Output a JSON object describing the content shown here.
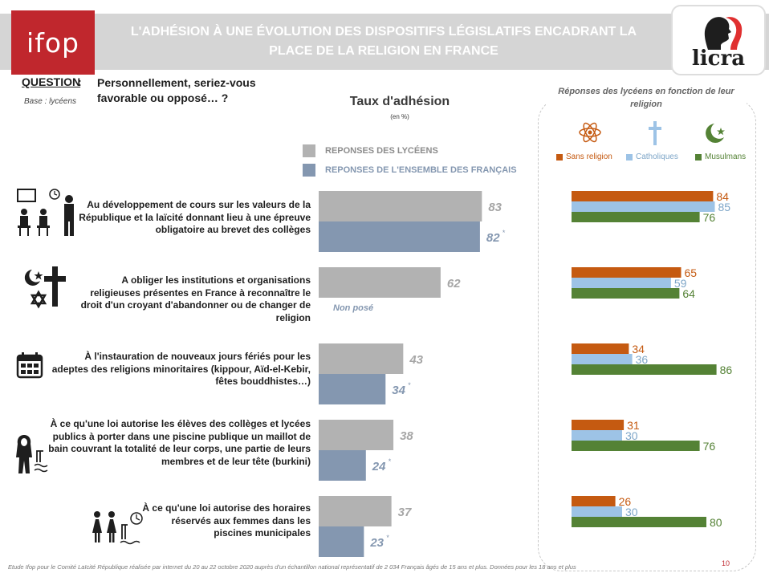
{
  "header": {
    "logo_text": "ifop",
    "title_line1": "L'ADHÉSION À UNE ÉVOLUTION DES DISPOSITIFS LÉGISLATIFS ENCADRANT LA",
    "title_line2": "PLACE DE LA RELIGION EN FRANCE",
    "partner_logo_text": "licra"
  },
  "question": {
    "label": "QUESTION",
    "colon": ":",
    "text": "Personnellement, seriez-vous favorable ou opposé… ?",
    "base": "Base : lycéens"
  },
  "colors": {
    "brand_red": "#c0272d",
    "lyceens": "#b2b2b2",
    "francais": "#8497b0",
    "sans_religion": "#c55a11",
    "catholiques": "#9dc3e6",
    "musulmans": "#548235"
  },
  "footer": {
    "note": "Etude Ifop pour le Comité Laïcité République réalisée par internet du 20 au 22 octobre 2020 auprès d'un échantillon national représentatif  de 2 034 Français âgés de 15 ans et plus. Données pour les 18 ans et plus",
    "page_number": "10"
  },
  "chart_data": [
    {
      "type": "bar",
      "title": "Taux d'adhésion",
      "unit": "(en %)",
      "series": [
        {
          "name": "REPONSES DES LYCÉENS",
          "values": [
            83,
            62,
            43,
            38,
            37
          ]
        },
        {
          "name": "REPONSES DE L'ENSEMBLE DES FRANÇAIS",
          "values": [
            82,
            null,
            34,
            24,
            23
          ]
        }
      ],
      "categories": [
        "Au développement de cours sur les valeurs de la République et la laïcité donnant lieu à une épreuve obligatoire au brevet des collèges",
        "A obliger les institutions et organisations religieuses présentes en France à reconnaître le droit d'un croyant d'abandonner ou de changer de religion",
        "À l'instauration de nouveaux jours fériés pour les adeptes des religions minoritaires (kippour, Aïd-el-Kebir, fêtes bouddhistes…)",
        "À ce qu'une loi autorise les élèves des collèges et lycées publics à porter dans une piscine publique un maillot de bain couvrant la totalité de leur corps, une partie de leurs membres et de leur tête (burkini)",
        "À ce qu'une loi autorise des horaires réservés aux femmes dans les piscines municipales"
      ],
      "value_labels": [
        [
          "83",
          "82"
        ],
        [
          "62",
          null
        ],
        [
          "43",
          "34"
        ],
        [
          "38",
          "24"
        ],
        [
          "37",
          "23"
        ]
      ],
      "significance_marker": "*",
      "not_asked_label": "Non posé",
      "xlim": [
        0,
        100
      ]
    },
    {
      "type": "bar",
      "orientation": "horizontal",
      "title": "Réponses des lycéens en fonction de leur religion",
      "series": [
        {
          "name": "Sans religion",
          "values": [
            84,
            65,
            34,
            31,
            26
          ]
        },
        {
          "name": "Catholiques",
          "values": [
            85,
            59,
            36,
            30,
            30
          ]
        },
        {
          "name": "Musulmans",
          "values": [
            76,
            64,
            86,
            76,
            80
          ]
        }
      ],
      "xlim": [
        0,
        100
      ]
    }
  ]
}
